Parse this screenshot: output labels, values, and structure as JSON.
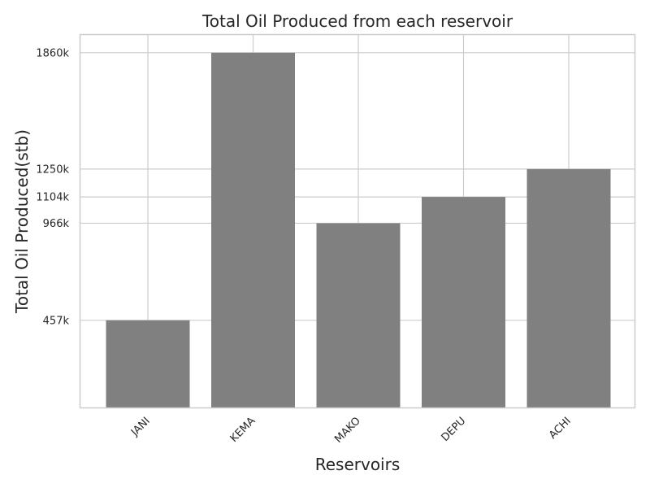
{
  "chart_data": {
    "type": "bar",
    "title": "Total Oil Produced from each reservoir",
    "xlabel": "Reservoirs",
    "ylabel": "Total Oil Produced(stb)",
    "categories": [
      "JANI",
      "KEMA",
      "MAKO",
      "DEPU",
      "ACHI"
    ],
    "values": [
      457,
      1860,
      966,
      1104,
      1250
    ],
    "value_unit": "k",
    "yticks": [
      457,
      966,
      1104,
      1250,
      1860
    ],
    "ytick_labels": [
      "457k",
      "966k",
      "1104k",
      "1250k",
      "1860k"
    ],
    "ylim": [
      0,
      1953
    ],
    "grid": true,
    "bar_color": "#808080",
    "grid_color": "#cccccc",
    "axes_edge_color": "#cccccc"
  }
}
